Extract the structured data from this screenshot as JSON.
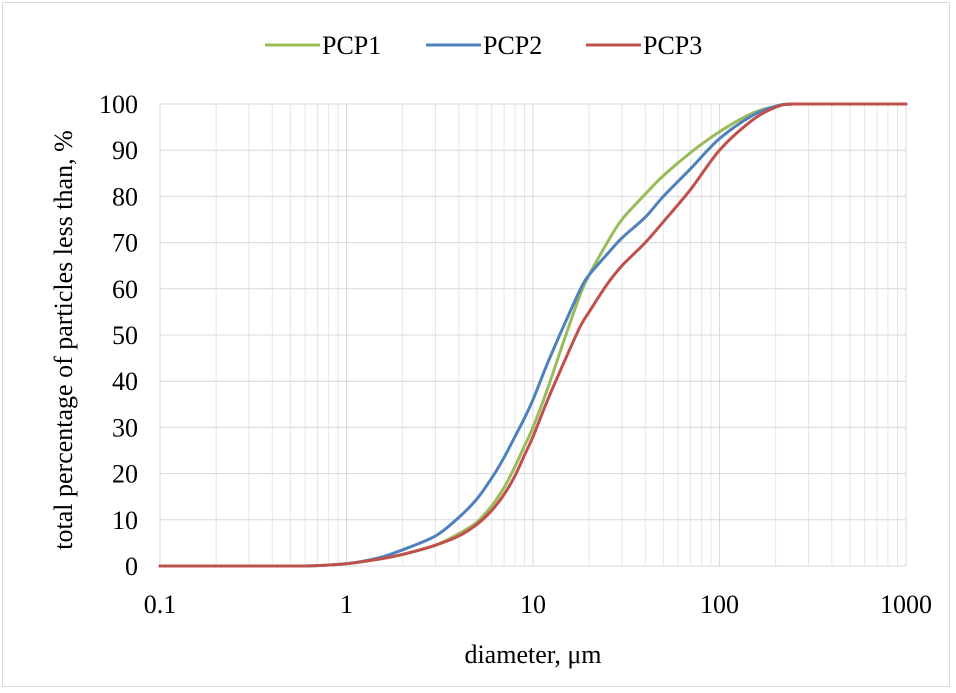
{
  "chart_data": {
    "type": "line",
    "x_scale": "log",
    "xlim": [
      0.1,
      1000
    ],
    "ylim": [
      0,
      100
    ],
    "x_ticks": [
      "0.1",
      "1",
      "10",
      "100",
      "1000"
    ],
    "y_ticks": [
      "0",
      "10",
      "20",
      "30",
      "40",
      "50",
      "60",
      "70",
      "80",
      "90",
      "100"
    ],
    "xlabel": "diameter, μm",
    "ylabel": "total percentage of particles less than, %",
    "grid": true,
    "legend_position": "top",
    "series": [
      {
        "name": "PCP1",
        "color": "#9bbb59",
        "points": [
          [
            0.1,
            0
          ],
          [
            0.3,
            0
          ],
          [
            0.6,
            0
          ],
          [
            1,
            0.5
          ],
          [
            1.5,
            1.5
          ],
          [
            2,
            2.5
          ],
          [
            3,
            4.5
          ],
          [
            4,
            7
          ],
          [
            5,
            9.5
          ],
          [
            6,
            13
          ],
          [
            7,
            17
          ],
          [
            8,
            21.5
          ],
          [
            9,
            26
          ],
          [
            10,
            30
          ],
          [
            12,
            38.5
          ],
          [
            15,
            50
          ],
          [
            18,
            59
          ],
          [
            20,
            63
          ],
          [
            25,
            70
          ],
          [
            30,
            75
          ],
          [
            40,
            80.5
          ],
          [
            50,
            84.5
          ],
          [
            70,
            89.5
          ],
          [
            100,
            94
          ],
          [
            150,
            98
          ],
          [
            200,
            99.5
          ],
          [
            250,
            100
          ],
          [
            500,
            100
          ],
          [
            1000,
            100
          ]
        ]
      },
      {
        "name": "PCP2",
        "color": "#4f81bd",
        "points": [
          [
            0.1,
            0
          ],
          [
            0.3,
            0
          ],
          [
            0.6,
            0
          ],
          [
            1,
            0.5
          ],
          [
            1.5,
            1.8
          ],
          [
            2,
            3.5
          ],
          [
            3,
            6.5
          ],
          [
            4,
            10.5
          ],
          [
            5,
            14.5
          ],
          [
            6,
            19
          ],
          [
            7,
            23.5
          ],
          [
            8,
            28
          ],
          [
            9,
            32
          ],
          [
            10,
            36
          ],
          [
            12,
            44
          ],
          [
            15,
            53
          ],
          [
            18,
            60
          ],
          [
            20,
            63
          ],
          [
            25,
            67.5
          ],
          [
            30,
            71
          ],
          [
            40,
            75.5
          ],
          [
            50,
            80
          ],
          [
            70,
            86
          ],
          [
            100,
            92.5
          ],
          [
            150,
            97.5
          ],
          [
            200,
            99.5
          ],
          [
            250,
            100
          ],
          [
            500,
            100
          ],
          [
            1000,
            100
          ]
        ]
      },
      {
        "name": "PCP3",
        "color": "#c0504d",
        "points": [
          [
            0.1,
            0
          ],
          [
            0.3,
            0
          ],
          [
            0.6,
            0
          ],
          [
            1,
            0.5
          ],
          [
            1.5,
            1.5
          ],
          [
            2,
            2.5
          ],
          [
            3,
            4.5
          ],
          [
            4,
            6.5
          ],
          [
            5,
            9
          ],
          [
            6,
            12
          ],
          [
            7,
            15.5
          ],
          [
            8,
            19.5
          ],
          [
            9,
            24
          ],
          [
            10,
            28
          ],
          [
            12,
            36
          ],
          [
            15,
            45
          ],
          [
            18,
            52
          ],
          [
            20,
            55
          ],
          [
            25,
            61
          ],
          [
            30,
            65
          ],
          [
            40,
            70
          ],
          [
            50,
            74.5
          ],
          [
            70,
            81.5
          ],
          [
            100,
            90
          ],
          [
            150,
            96.5
          ],
          [
            200,
            99.3
          ],
          [
            250,
            100
          ],
          [
            500,
            100
          ],
          [
            1000,
            100
          ]
        ]
      }
    ]
  }
}
